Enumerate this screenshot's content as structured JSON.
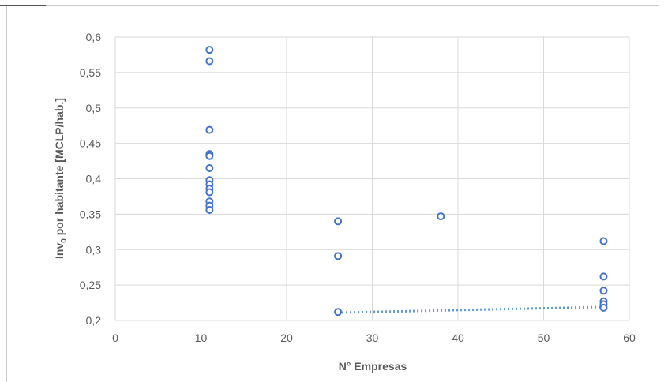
{
  "chart_data": {
    "type": "scatter",
    "title": "",
    "xlabel": "N° Empresas",
    "ylabel_main": "Inv",
    "ylabel_sub": "0",
    "ylabel_rest": " por habitante [MCLP/hab.]",
    "xlim": [
      0,
      60
    ],
    "ylim": [
      0.2,
      0.6
    ],
    "x_ticks": [
      {
        "value": 0,
        "label": "0"
      },
      {
        "value": 10,
        "label": "10"
      },
      {
        "value": 20,
        "label": "20"
      },
      {
        "value": 30,
        "label": "30"
      },
      {
        "value": 40,
        "label": "40"
      },
      {
        "value": 50,
        "label": "50"
      },
      {
        "value": 60,
        "label": "60"
      }
    ],
    "y_ticks": [
      {
        "value": 0.2,
        "label": "0,2"
      },
      {
        "value": 0.25,
        "label": "0,25"
      },
      {
        "value": 0.3,
        "label": "0,3"
      },
      {
        "value": 0.35,
        "label": "0,35"
      },
      {
        "value": 0.4,
        "label": "0,4"
      },
      {
        "value": 0.45,
        "label": "0,45"
      },
      {
        "value": 0.5,
        "label": "0,5"
      },
      {
        "value": 0.55,
        "label": "0,55"
      },
      {
        "value": 0.6,
        "label": "0,6"
      }
    ],
    "grid": true,
    "marker_color": "#4472c4",
    "trendline_color": "#5b9bd5",
    "points": [
      {
        "x": 11,
        "y": 0.582
      },
      {
        "x": 11,
        "y": 0.566
      },
      {
        "x": 11,
        "y": 0.469
      },
      {
        "x": 11,
        "y": 0.435
      },
      {
        "x": 11,
        "y": 0.432
      },
      {
        "x": 11,
        "y": 0.415
      },
      {
        "x": 11,
        "y": 0.398
      },
      {
        "x": 11,
        "y": 0.392
      },
      {
        "x": 11,
        "y": 0.386
      },
      {
        "x": 11,
        "y": 0.381
      },
      {
        "x": 11,
        "y": 0.368
      },
      {
        "x": 11,
        "y": 0.362
      },
      {
        "x": 11,
        "y": 0.356
      },
      {
        "x": 26,
        "y": 0.34
      },
      {
        "x": 26,
        "y": 0.291
      },
      {
        "x": 26,
        "y": 0.212
      },
      {
        "x": 38,
        "y": 0.347
      },
      {
        "x": 57,
        "y": 0.312
      },
      {
        "x": 57,
        "y": 0.262
      },
      {
        "x": 57,
        "y": 0.242
      },
      {
        "x": 57,
        "y": 0.227
      },
      {
        "x": 57,
        "y": 0.223
      },
      {
        "x": 57,
        "y": 0.218
      }
    ],
    "trendline": [
      {
        "x": 26,
        "y": 0.211
      },
      {
        "x": 57,
        "y": 0.219
      }
    ]
  }
}
